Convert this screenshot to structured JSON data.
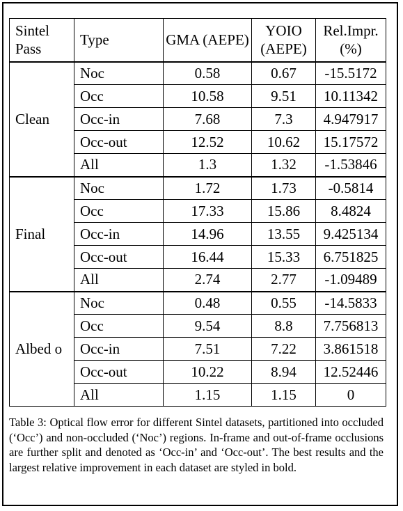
{
  "table": {
    "headers": [
      "Sintel Pass",
      "Type",
      "GMA (AEPE)",
      "YOIO (AEPE)",
      "Rel.Impr. (%)"
    ],
    "groups": [
      {
        "name": "Clean",
        "rows": [
          {
            "type": "Noc",
            "gma": "0.58",
            "yoio": "0.67",
            "rel": "-15.5172",
            "bold": "gma"
          },
          {
            "type": "Occ",
            "gma": "10.58",
            "yoio": "9.51",
            "rel": "10.11342",
            "bold": "yoio"
          },
          {
            "type": "Occ-in",
            "gma": "7.68",
            "yoio": "7.3",
            "rel": "4.947917",
            "bold": "yoio"
          },
          {
            "type": "Occ-out",
            "gma": "12.52",
            "yoio": "10.62",
            "rel": "15.17572",
            "bold": "yoio"
          },
          {
            "type": "All",
            "gma": "1.3",
            "yoio": "1.32",
            "rel": "-1.53846",
            "bold": "gma"
          }
        ]
      },
      {
        "name": "Final",
        "rows": [
          {
            "type": "Noc",
            "gma": "1.72",
            "yoio": "1.73",
            "rel": "-0.5814",
            "bold": "gma"
          },
          {
            "type": "Occ",
            "gma": "17.33",
            "yoio": "15.86",
            "rel": "8.4824",
            "bold": "yoio"
          },
          {
            "type": "Occ-in",
            "gma": "14.96",
            "yoio": "13.55",
            "rel": "9.425134",
            "bold": "yoio"
          },
          {
            "type": "Occ-out",
            "gma": "16.44",
            "yoio": "15.33",
            "rel": "6.751825",
            "bold": "yoio"
          },
          {
            "type": "All",
            "gma": "2.74",
            "yoio": "2.77",
            "rel": "-1.09489",
            "bold": "gma"
          }
        ]
      },
      {
        "name": "Albed o",
        "rows": [
          {
            "type": "Noc",
            "gma": "0.48",
            "yoio": "0.55",
            "rel": "-14.5833",
            "bold": "gma"
          },
          {
            "type": "Occ",
            "gma": "9.54",
            "yoio": "8.8",
            "rel": "7.756813",
            "bold": "yoio"
          },
          {
            "type": "Occ-in",
            "gma": "7.51",
            "yoio": "7.22",
            "rel": "3.861518",
            "bold": "yoio"
          },
          {
            "type": "Occ-out",
            "gma": "10.22",
            "yoio": "8.94",
            "rel": "12.52446",
            "bold": "yoio"
          },
          {
            "type": "All",
            "gma": "1.15",
            "yoio": "1.15",
            "rel": "0",
            "bold": ""
          }
        ]
      }
    ]
  },
  "caption": "Table 3: Optical flow error for different Sintel datasets, partitioned into occluded (‘Occ’) and non-occluded (‘Noc’) regions. In-frame and out-of-frame occlusions are further split and denoted as ‘Occ-in’ and ‘Occ-out’. The best results and the largest relative improvement in each dataset are styled in bold."
}
